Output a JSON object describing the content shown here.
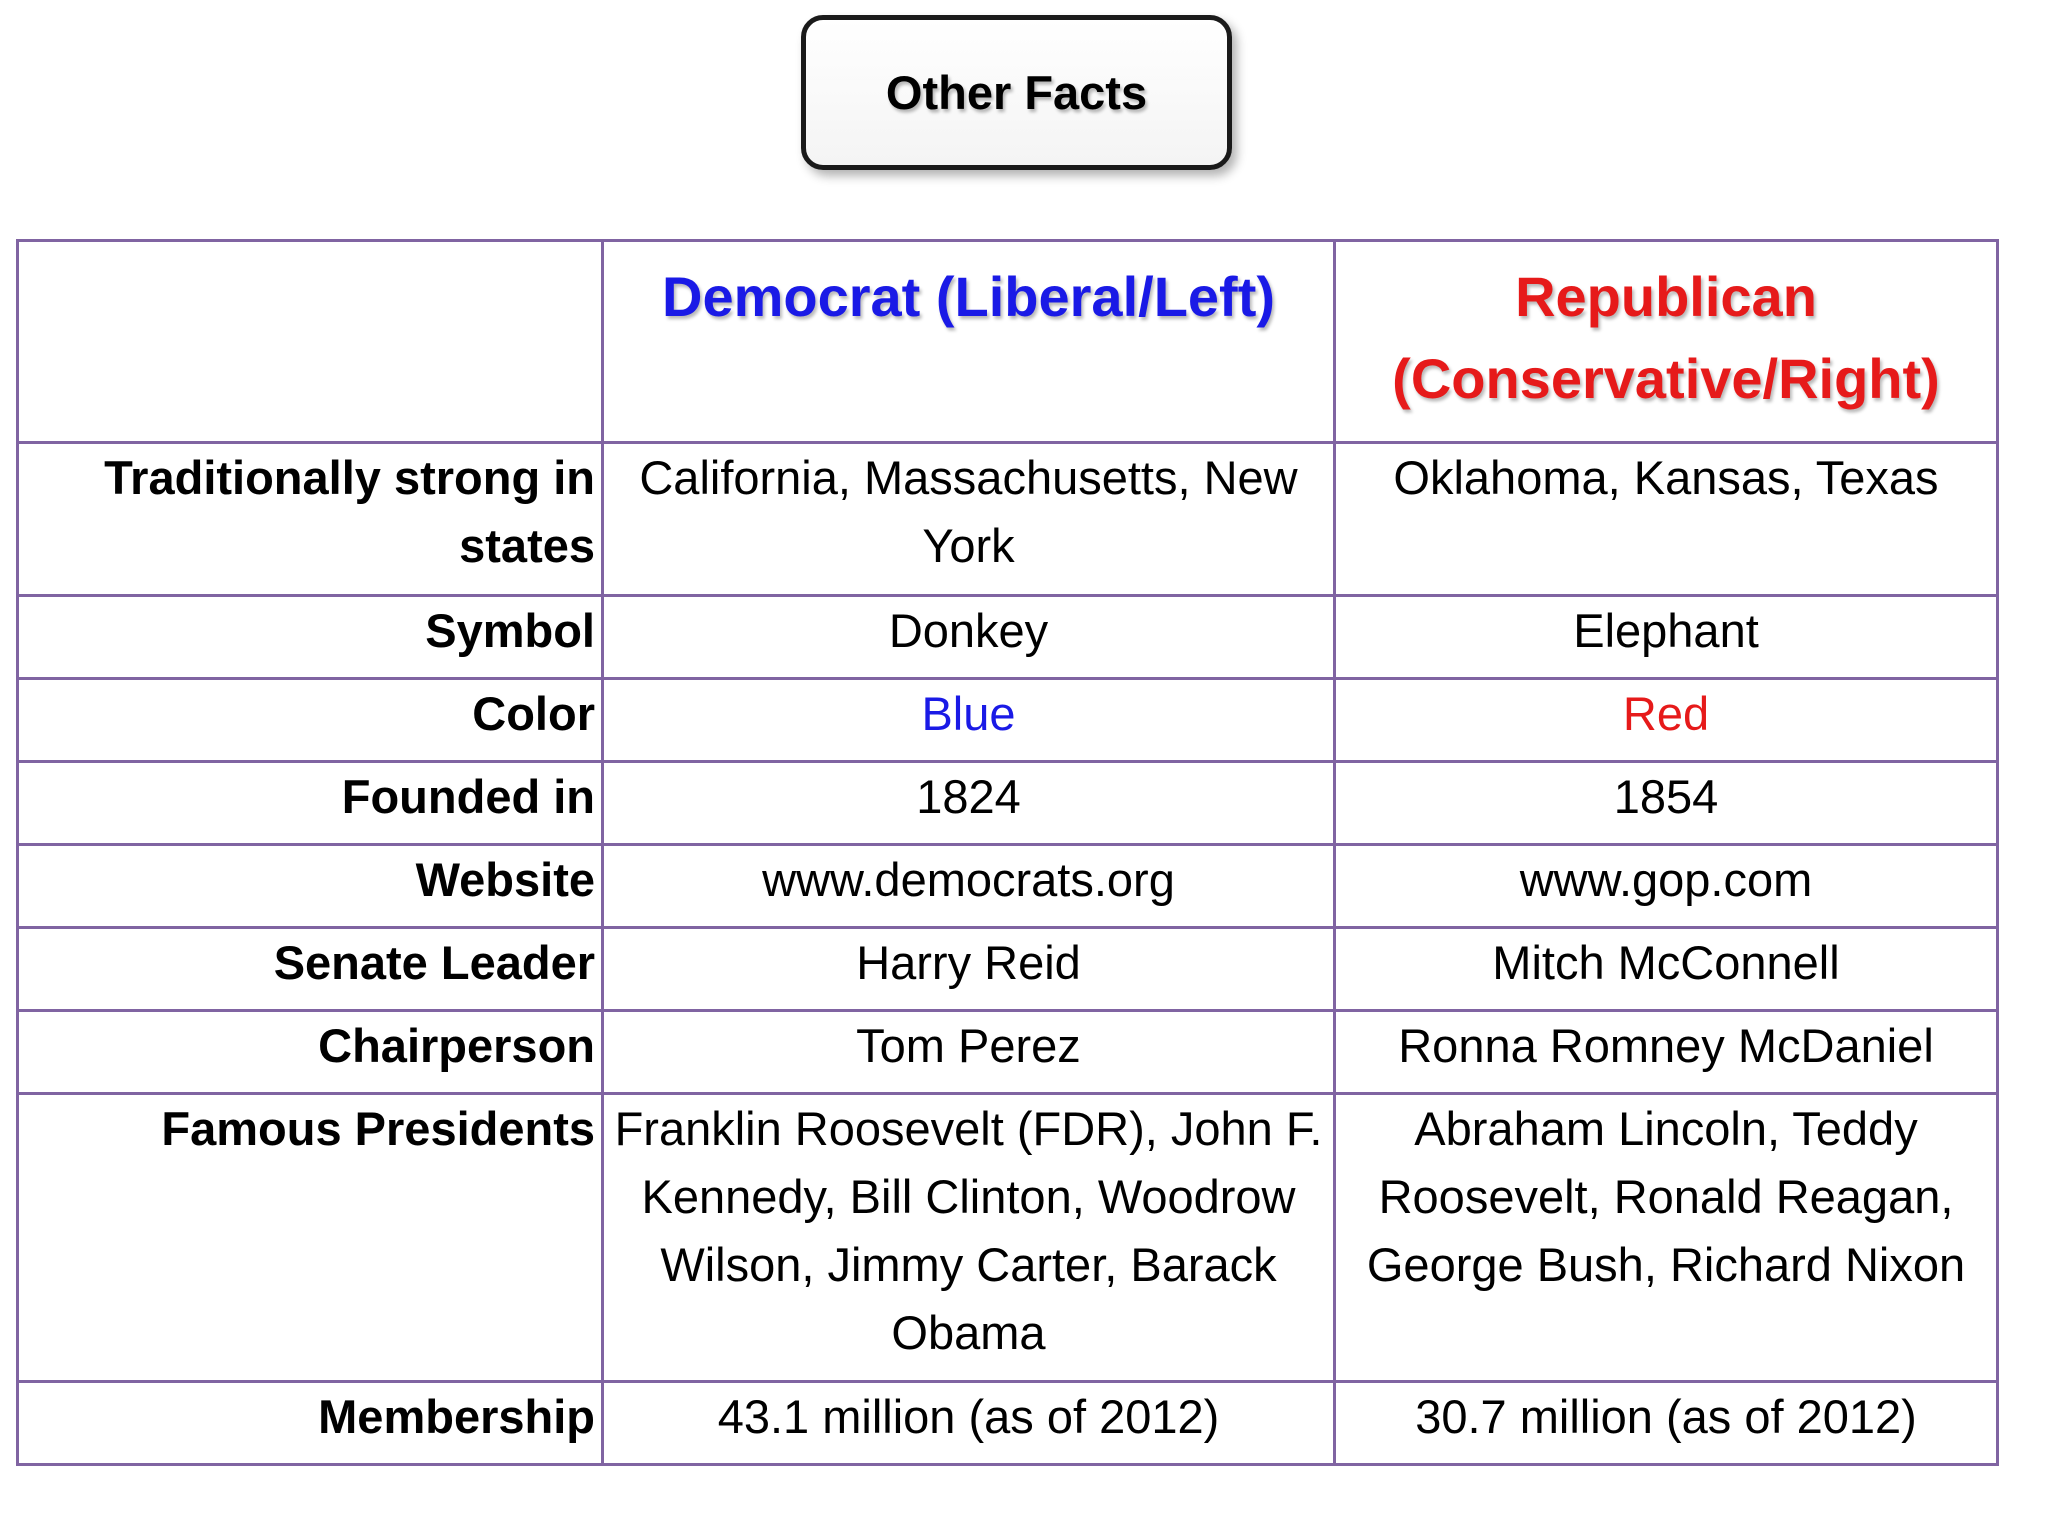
{
  "title": "Other Facts",
  "columns": {
    "democrat": "Democrat (Liberal/Left)",
    "republican": "Republican (Conservative/Right)"
  },
  "colors": {
    "democrat": "#1a1ae6",
    "republican": "#e61a1a",
    "table_border": "#8064a2"
  },
  "rows": [
    {
      "label": "Traditionally strong in states",
      "democrat": "California, Massachusetts, New York",
      "republican": "Oklahoma, Kansas, Texas"
    },
    {
      "label": "Symbol",
      "democrat": "Donkey",
      "republican": "Elephant"
    },
    {
      "label": "Color",
      "democrat": "Blue",
      "republican": "Red"
    },
    {
      "label": "Founded in",
      "democrat": "1824",
      "republican": "1854"
    },
    {
      "label": "Website",
      "democrat": "www.democrats.org",
      "republican": "www.gop.com"
    },
    {
      "label": "Senate Leader",
      "democrat": "Harry Reid",
      "republican": "Mitch McConnell"
    },
    {
      "label": "Chairperson",
      "democrat": "Tom Perez",
      "republican": "Ronna Romney McDaniel"
    },
    {
      "label": "Famous Presidents",
      "democrat": "Franklin Roosevelt (FDR), John F. Kennedy, Bill Clinton, Woodrow Wilson, Jimmy Carter, Barack Obama",
      "republican": "Abraham Lincoln, Teddy Roosevelt, Ronald Reagan, George Bush, Richard Nixon"
    },
    {
      "label": "Membership",
      "democrat": "43.1 million (as of 2012)",
      "republican": "30.7 million (as of 2012)"
    }
  ]
}
